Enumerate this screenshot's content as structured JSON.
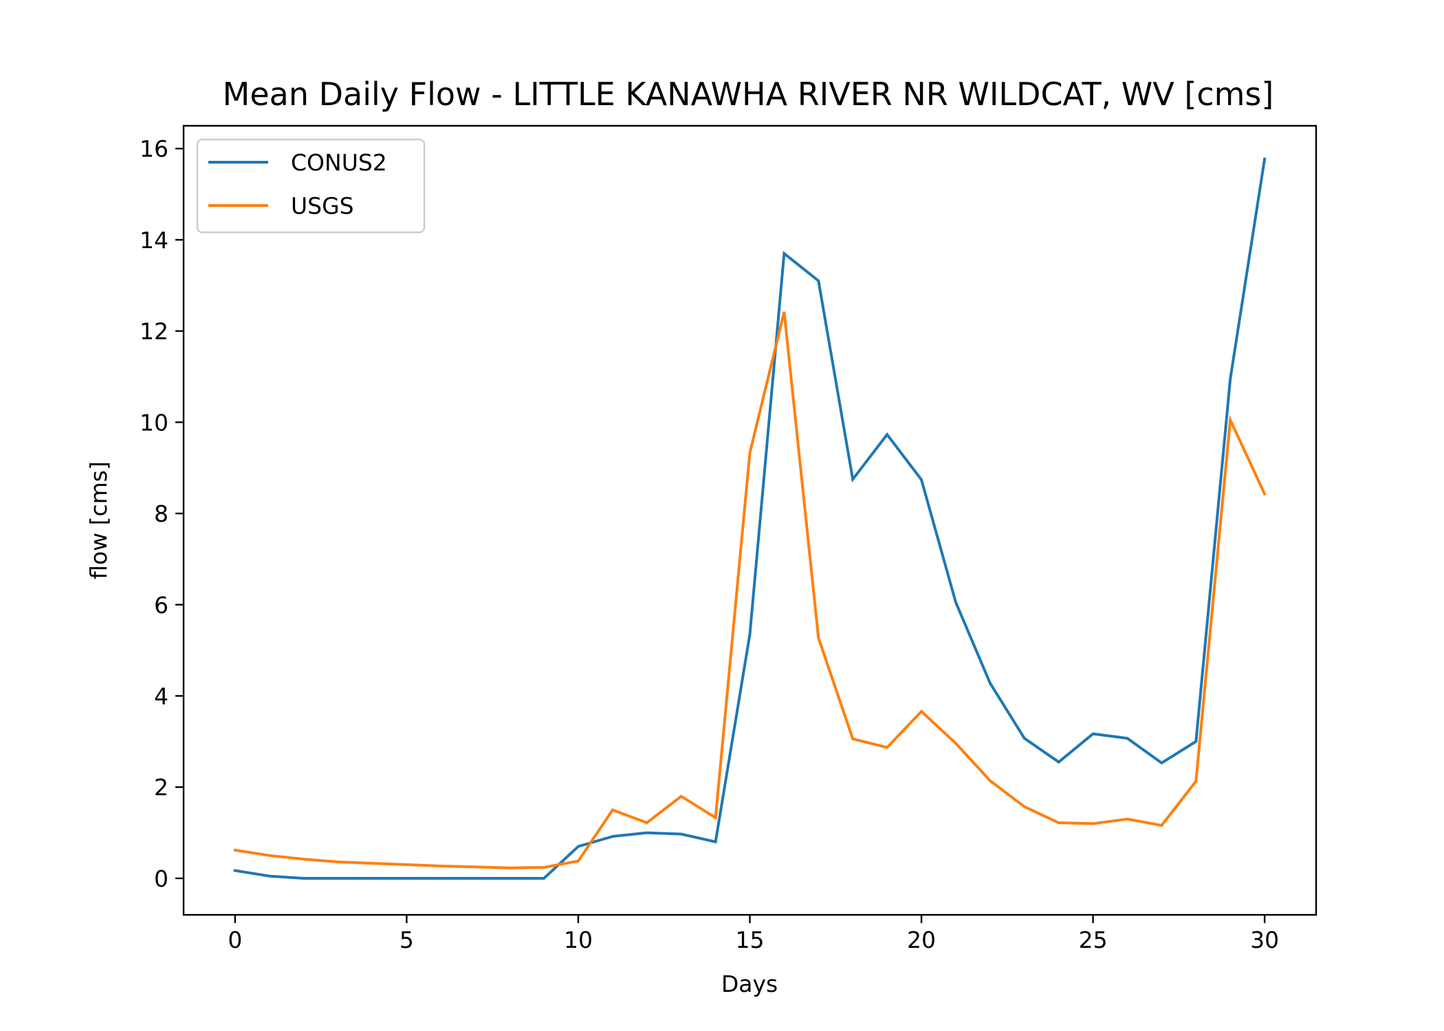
{
  "chart_data": {
    "type": "line",
    "title": "Mean Daily Flow - LITTLE KANAWHA RIVER NR WILDCAT, WV [cms]",
    "xlabel": "Days",
    "ylabel": "flow [cms]",
    "xlim": [
      -1.5,
      31.5
    ],
    "ylim": [
      -0.8,
      16.5
    ],
    "xticks": [
      0,
      5,
      10,
      15,
      20,
      25,
      30
    ],
    "yticks": [
      0,
      2,
      4,
      6,
      8,
      10,
      12,
      14,
      16
    ],
    "grid": false,
    "legend_position": "upper-left",
    "x": [
      0,
      1,
      2,
      3,
      4,
      5,
      6,
      7,
      8,
      9,
      10,
      11,
      12,
      13,
      14,
      15,
      16,
      17,
      18,
      19,
      20,
      21,
      22,
      23,
      24,
      25,
      26,
      27,
      28,
      29,
      30
    ],
    "series": [
      {
        "name": "CONUS2",
        "color": "#1f77b4",
        "values": [
          0.17,
          0.05,
          0.0,
          0.0,
          0.0,
          0.0,
          0.0,
          0.0,
          0.0,
          0.0,
          0.7,
          0.92,
          1.0,
          0.97,
          0.8,
          5.35,
          13.7,
          13.1,
          8.75,
          9.73,
          8.74,
          6.05,
          4.28,
          3.07,
          2.55,
          3.17,
          3.07,
          2.53,
          3.0,
          10.95,
          15.77
        ]
      },
      {
        "name": "USGS",
        "color": "#ff7f0e",
        "values": [
          0.62,
          0.5,
          0.42,
          0.36,
          0.33,
          0.3,
          0.27,
          0.25,
          0.23,
          0.24,
          0.38,
          1.5,
          1.22,
          1.8,
          1.33,
          9.33,
          12.42,
          5.27,
          3.06,
          2.87,
          3.66,
          2.96,
          2.14,
          1.57,
          1.22,
          1.2,
          1.3,
          1.16,
          2.13,
          10.05,
          8.43
        ]
      }
    ]
  }
}
